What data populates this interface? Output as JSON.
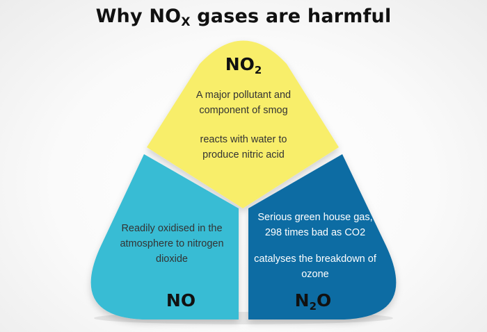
{
  "title": {
    "main": "Why NO",
    "sub": "X",
    "rest": " gases are harmful"
  },
  "colors": {
    "top_panel": "#f8ee6a",
    "left_panel": "#37bcd4",
    "right_panel": "#0e6ca3",
    "divider": "#ffffff",
    "dark_text": "#333333",
    "light_text": "#ffffff"
  },
  "panels": {
    "no2": {
      "label_main": "NO",
      "label_sub": "2",
      "lines": [
        "A major pollutant and",
        "component of smog"
      ],
      "lines2": [
        "reacts with water to",
        "produce nitric acid"
      ]
    },
    "no": {
      "label_main": "NO",
      "lines": [
        "Readily oxidised in the",
        "atmosphere to nitrogen",
        "dioxide"
      ]
    },
    "n2o": {
      "label_n": "N",
      "label_sub": "2",
      "label_o": "O",
      "lines": [
        "Serious green house gas,",
        "298 times bad as CO2"
      ],
      "lines2": [
        "catalyses the breakdown of",
        "ozone"
      ]
    }
  }
}
